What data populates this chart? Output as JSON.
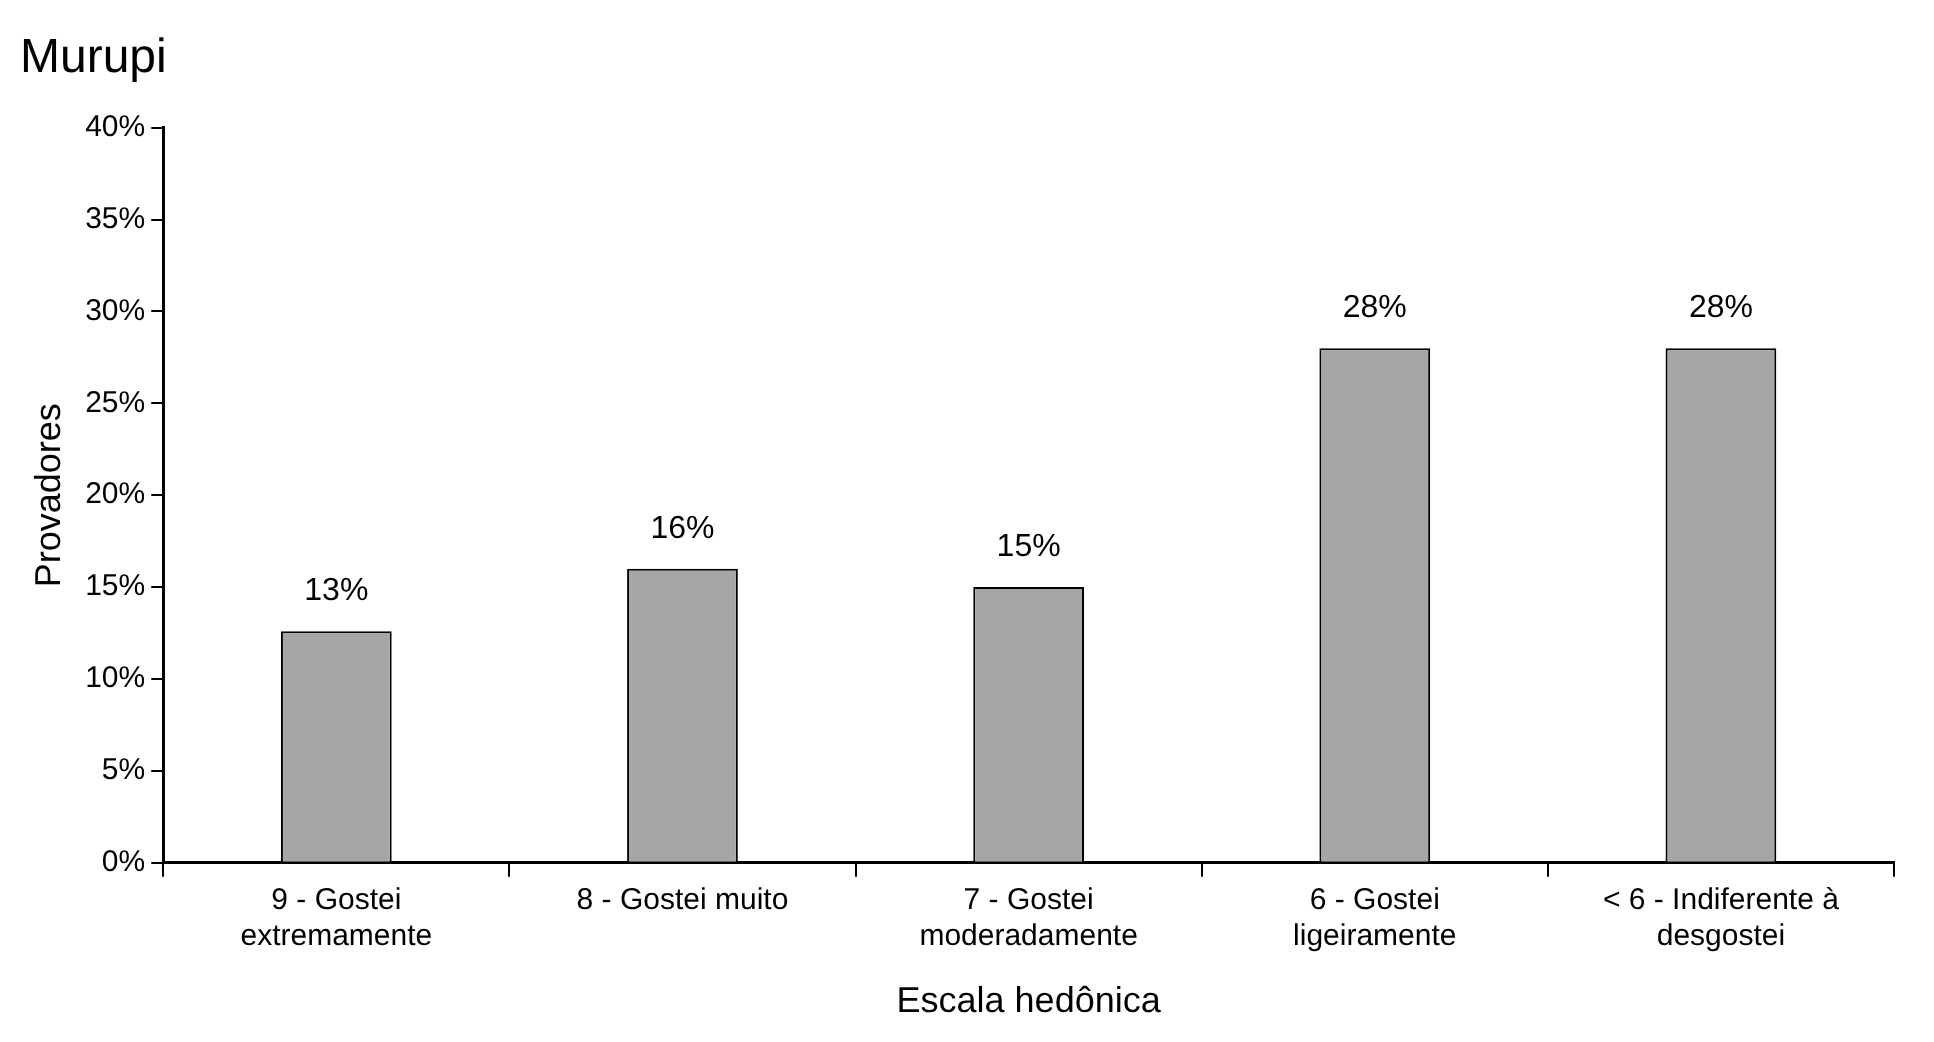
{
  "chart_data": {
    "type": "bar",
    "title": "Murupi",
    "xlabel": "Escala hedônica",
    "ylabel": "Provadores",
    "categories": [
      "9 - Gostei extremamente",
      "8 - Gostei muito",
      "7 - Gostei moderadamente",
      "6 - Gostei ligeiramente",
      "< 6 - Indiferente à desgostei"
    ],
    "values": [
      12.6,
      16,
      15,
      28,
      28
    ],
    "value_labels": [
      "13%",
      "16%",
      "15%",
      "28%",
      "28%"
    ],
    "color": "#a6a6a6",
    "ylim": [
      0,
      40
    ],
    "yticks": [
      {
        "value": 0,
        "label": "0%"
      },
      {
        "value": 5,
        "label": "5%"
      },
      {
        "value": 10,
        "label": "10%"
      },
      {
        "value": 15,
        "label": "15%"
      },
      {
        "value": 20,
        "label": "20%"
      },
      {
        "value": 25,
        "label": "25%"
      },
      {
        "value": 30,
        "label": "30%"
      },
      {
        "value": 35,
        "label": "35%"
      },
      {
        "value": 40,
        "label": "40%"
      }
    ],
    "grid": false,
    "legend": false
  }
}
